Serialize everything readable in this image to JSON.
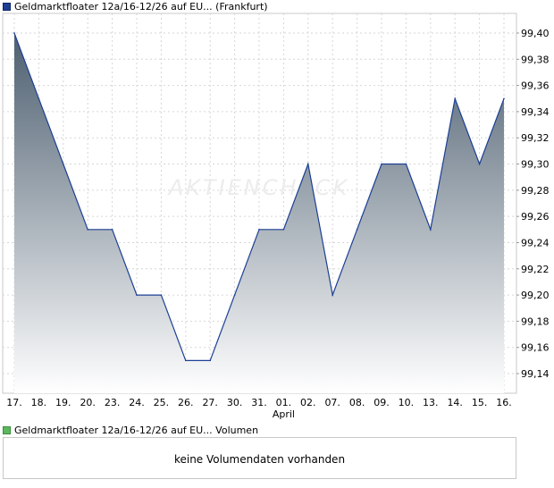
{
  "legend": {
    "price_series": "Geldmarktfloater 12a/16-12/26 auf EU... (Frankfurt)",
    "price_color": "#1c3f94",
    "volume_series": "Geldmarktfloater 12a/16-12/26 auf EU... Volumen",
    "volume_color": "#5cb85c"
  },
  "watermark": "AKTIENCHECK",
  "volume_panel": {
    "message": "keine Volumendaten vorhanden"
  },
  "chart_data": {
    "type": "area",
    "x": [
      "17.",
      "18.",
      "19.",
      "20.",
      "23.",
      "24.",
      "25.",
      "26.",
      "27.",
      "30.",
      "31.",
      "01.",
      "02.",
      "07.",
      "08.",
      "09.",
      "10.",
      "13.",
      "14.",
      "15.",
      "16."
    ],
    "month_markers": [
      {
        "index": 11,
        "label": "April"
      }
    ],
    "series": [
      {
        "name": "Geldmarktfloater 12a/16-12/26 auf EU... (Frankfurt)",
        "values": [
          99.4,
          99.35,
          99.3,
          99.25,
          99.25,
          99.2,
          99.2,
          99.15,
          99.15,
          99.2,
          99.25,
          99.25,
          99.3,
          99.2,
          99.25,
          99.3,
          99.3,
          99.25,
          99.35,
          99.3,
          99.35
        ]
      }
    ],
    "y_ticks": [
      "99,14",
      "99,16",
      "99,18",
      "99,20",
      "99,22",
      "99,24",
      "99,26",
      "99,28",
      "99,30",
      "99,32",
      "99,34",
      "99,36",
      "99,38",
      "99,40"
    ],
    "ylim": [
      99.125,
      99.415
    ],
    "grid": true,
    "legend_position": "top-left",
    "line_color": "#1c3f94",
    "fill_top_color": "#4d5f70",
    "fill_bottom_color": "#ffffff"
  }
}
